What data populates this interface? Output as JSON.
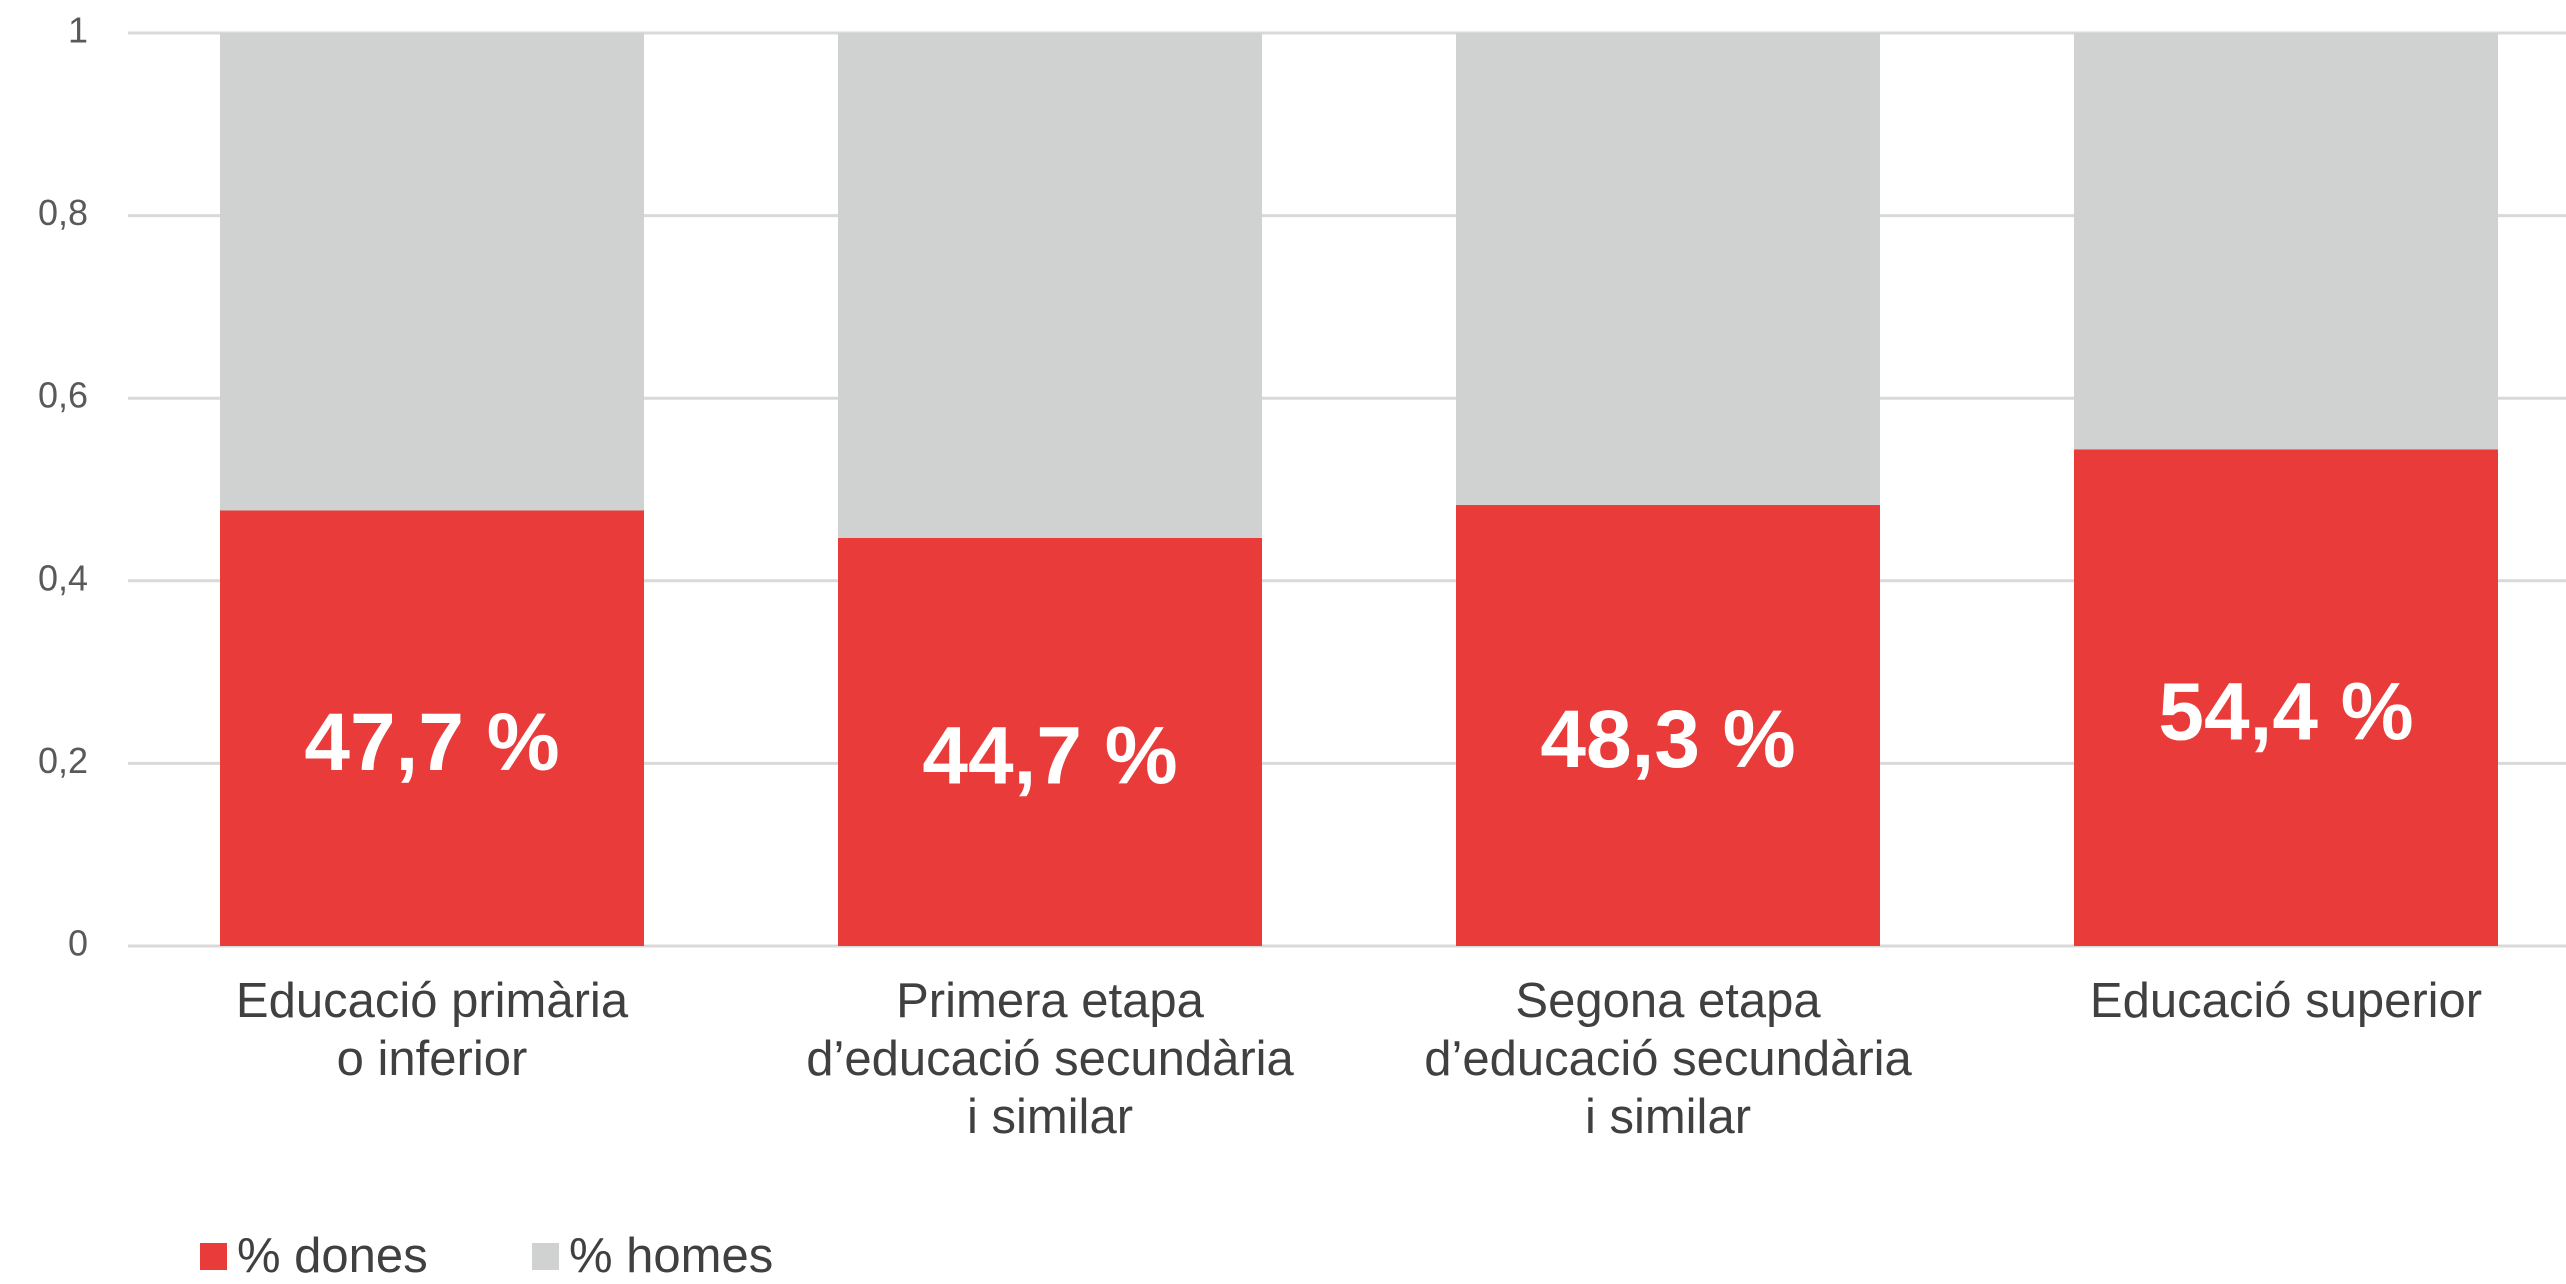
{
  "chart_data": {
    "type": "stacked_bar",
    "categories": [
      "Educació primària\no inferior",
      "Primera etapa\nd’educació secundària\ni similar",
      "Segona etapa\nd’educació secundària\ni similar",
      "Educació superior"
    ],
    "series": [
      {
        "name": "% dones",
        "color": "#e83b3a",
        "values": [
          0.477,
          0.447,
          0.483,
          0.544
        ],
        "value_labels": [
          "47,7 %",
          "44,7 %",
          "48,3 %",
          "54,4 %"
        ]
      },
      {
        "name": "% homes",
        "color": "#d0d2d1",
        "values": [
          0.523,
          0.553,
          0.517,
          0.456
        ]
      }
    ],
    "ylim": [
      0,
      1
    ],
    "yticks": [
      0,
      {
        "value": 0.2,
        "label": "0,2"
      },
      {
        "value": 0.4,
        "label": "0,4"
      },
      {
        "value": 0.6,
        "label": "0,6"
      },
      {
        "value": 0.8,
        "label": "0,8"
      },
      1
    ],
    "grid": true,
    "legend": "bottom-left"
  }
}
